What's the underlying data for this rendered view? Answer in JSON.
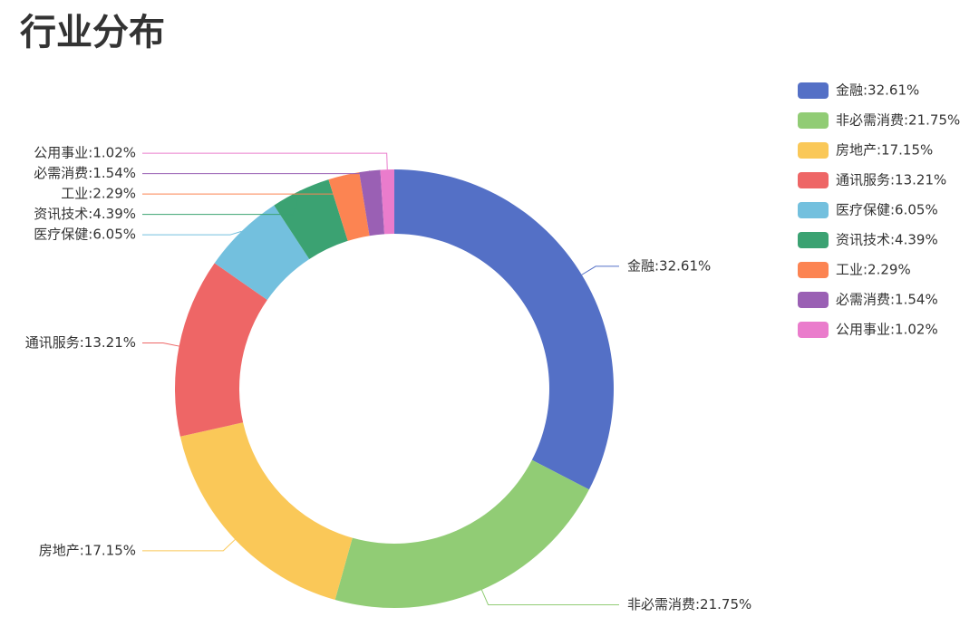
{
  "chart_data": {
    "type": "donut",
    "title": "行业分布",
    "categories": [
      "金融:32.61%",
      "非必需消费:21.75%",
      "房地产:17.15%",
      "通讯服务:13.21%",
      "医疗保健:6.05%",
      "资讯技术:4.39%",
      "工业:2.29%",
      "必需消费:1.54%",
      "公用事业:1.02%"
    ],
    "values": [
      32.61,
      21.75,
      17.15,
      13.21,
      6.05,
      4.39,
      2.29,
      1.54,
      1.02
    ],
    "colors": [
      "#5470c6",
      "#91cc75",
      "#fac858",
      "#ee6666",
      "#73c0de",
      "#3ba272",
      "#fc8452",
      "#9a60b4",
      "#ea7ccc"
    ],
    "legend": "right"
  }
}
